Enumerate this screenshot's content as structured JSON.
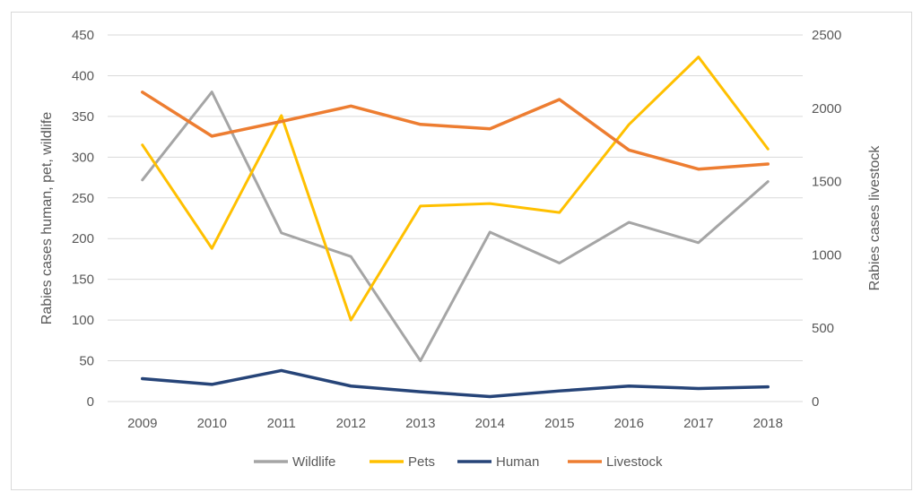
{
  "chart_data": {
    "type": "line",
    "categories": [
      "2009",
      "2010",
      "2011",
      "2012",
      "2013",
      "2014",
      "2015",
      "2016",
      "2017",
      "2018"
    ],
    "series": [
      {
        "name": "Wildlife",
        "axis": "left",
        "color": "#a5a5a5",
        "values": [
          272,
          380,
          207,
          178,
          50,
          208,
          170,
          220,
          195,
          270
        ]
      },
      {
        "name": "Pets",
        "axis": "left",
        "color": "#ffc000",
        "values": [
          315,
          188,
          351,
          100,
          240,
          243,
          232,
          340,
          423,
          310
        ]
      },
      {
        "name": "Human",
        "axis": "left",
        "color": "#264478",
        "values": [
          28,
          21,
          38,
          19,
          12,
          6,
          13,
          19,
          16,
          18
        ]
      },
      {
        "name": "Livestock",
        "axis": "right",
        "color": "#ed7d31",
        "values": [
          2110,
          1810,
          1910,
          2015,
          1890,
          1860,
          2060,
          1715,
          1585,
          1620
        ]
      }
    ],
    "ylabel": "Rabies cases human, pet, wildlife",
    "y2label": "Rabies cases livestock",
    "ylim": [
      0,
      450
    ],
    "y2lim": [
      0,
      2500
    ],
    "yticks": [
      "0",
      "50",
      "100",
      "150",
      "200",
      "250",
      "300",
      "350",
      "400",
      "450"
    ],
    "y2ticks": [
      "0",
      "500",
      "1000",
      "1500",
      "2000",
      "2500"
    ],
    "grid": true,
    "legend": "bottom"
  }
}
